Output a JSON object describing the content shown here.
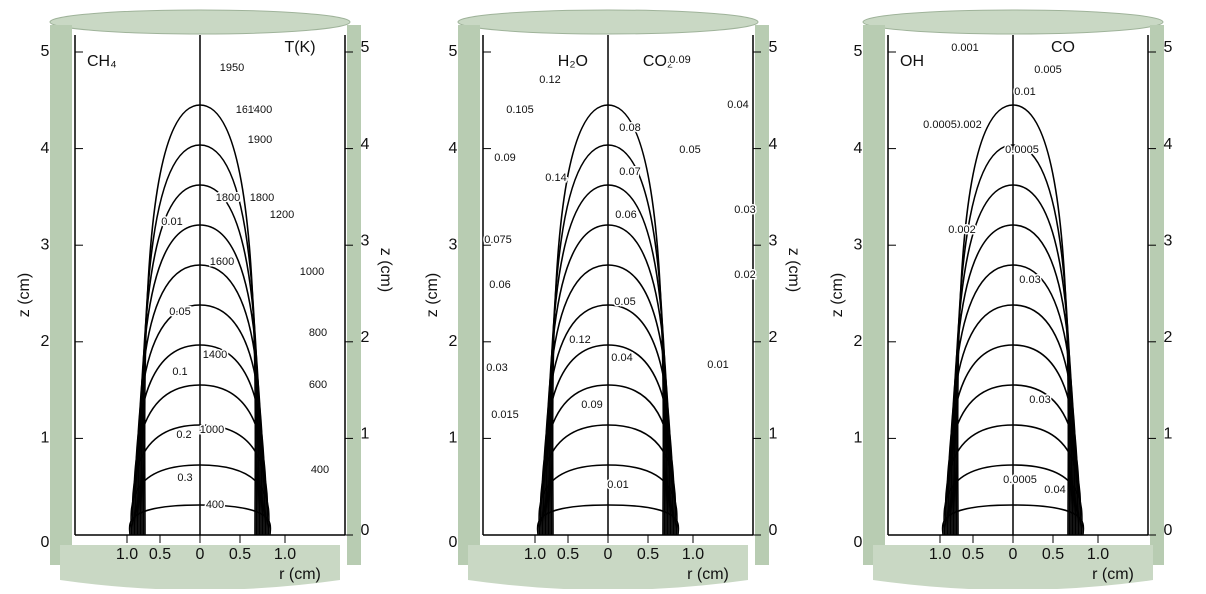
{
  "panels": [
    {
      "left_label": "CH₄",
      "right_label": "T(K)",
      "z_axis_label": "z (cm)",
      "right_z_axis_label": "z (cm)",
      "r_axis_label": "r (cm)",
      "z_ticks": [
        "0",
        "1",
        "2",
        "3",
        "4",
        "5"
      ],
      "r_ticks": [
        "1.0",
        "0.5",
        "0",
        "0.5",
        "1.0"
      ],
      "contour_labels": [
        "0.01",
        "0.05",
        "0.1",
        "0.2",
        "0.3",
        "1950",
        "1600",
        "1400",
        "1900",
        "1800",
        "1800",
        "1200",
        "1600",
        "1000",
        "800",
        "1400",
        "600",
        "1000",
        "400",
        "400"
      ]
    },
    {
      "left_label": "H₂O",
      "right_label": "CO₂",
      "z_axis_label": "z (cm)",
      "right_z_axis_label": "z (cm)",
      "r_axis_label": "r (cm)",
      "z_ticks": [
        "0",
        "1",
        "2",
        "3",
        "4",
        "5"
      ],
      "r_ticks": [
        "1.0",
        "0.5",
        "0",
        "0.5",
        "1.0"
      ],
      "contour_labels": [
        "0.12",
        "0.105",
        "0.09",
        "0.14",
        "0.075",
        "0.06",
        "0.03",
        "0.015",
        "0.12",
        "0.09",
        "0.09",
        "0.04",
        "0.08",
        "0.05",
        "0.07",
        "0.06",
        "0.03",
        "0.02",
        "0.05",
        "0.04",
        "0.01",
        "0.01"
      ]
    },
    {
      "left_label": "OH",
      "right_label": "CO",
      "z_axis_label": "z (cm)",
      "r_axis_label": "r (cm)",
      "z_ticks": [
        "0",
        "1",
        "2",
        "3",
        "4",
        "5"
      ],
      "r_ticks": [
        "1.0",
        "0.5",
        "0",
        "0.5",
        "1.0"
      ],
      "contour_labels": [
        "0.001",
        "0.005",
        "0.01",
        "0.002",
        "0.0005",
        "0.0005",
        "0.002",
        "0.03",
        "0.03",
        "0.04",
        "0.0005"
      ]
    }
  ]
}
